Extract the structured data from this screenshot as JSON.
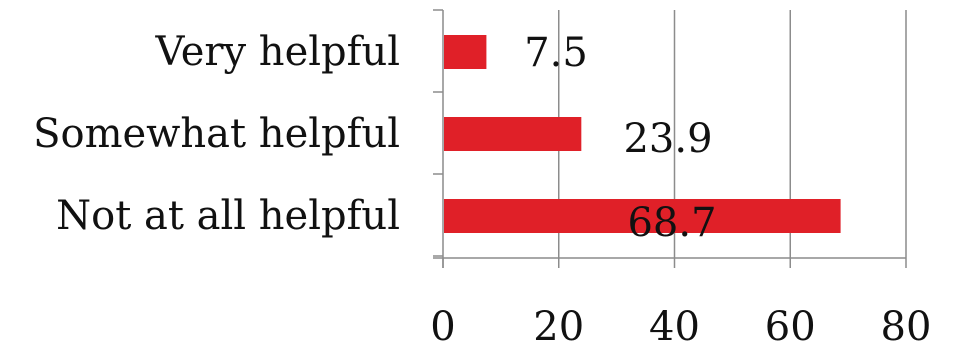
{
  "chart_data": {
    "type": "bar",
    "orientation": "horizontal",
    "categories": [
      "Very helpful",
      "Somewhat helpful",
      "Not at all helpful"
    ],
    "values": [
      7.5,
      23.9,
      68.7
    ],
    "data_labels": [
      "7.5",
      "23.9",
      "68.7"
    ],
    "xlim": [
      0,
      80
    ],
    "x_ticks": [
      0,
      20,
      40,
      60,
      80
    ],
    "x_tick_labels": [
      "0",
      "20",
      "40",
      "60",
      "80"
    ],
    "title": "",
    "xlabel": "",
    "ylabel": "",
    "grid": true,
    "legend": "none",
    "bar_color": "#e02028",
    "grid_color": "#8c8c8c"
  }
}
